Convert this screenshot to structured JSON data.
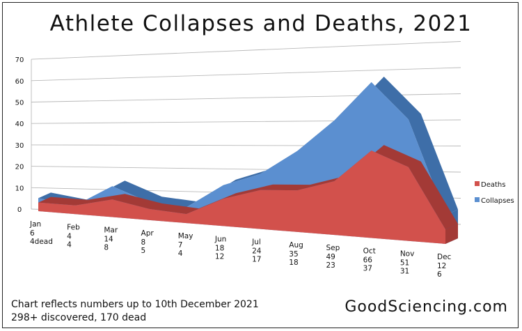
{
  "chart_data": {
    "type": "area",
    "title": "Athlete Collapses and Deaths, 2021",
    "categories": [
      "Jan",
      "Feb",
      "Mar",
      "Apr",
      "May",
      "Jun",
      "Jul",
      "Aug",
      "Sep",
      "Oct",
      "Nov",
      "Dec"
    ],
    "y_ticks": [
      "0",
      "10",
      "20",
      "30",
      "40",
      "50",
      "60",
      "70"
    ],
    "ylim": [
      0,
      70
    ],
    "grid": true,
    "legend_position": "right",
    "series": [
      {
        "name": "Collapses",
        "color": "#5b8fd0",
        "values": [
          6,
          4,
          14,
          8,
          7,
          18,
          24,
          35,
          49,
          66,
          51,
          12
        ]
      },
      {
        "name": "Deaths",
        "color": "#d2514c",
        "values": [
          4,
          4,
          8,
          5,
          4,
          12,
          17,
          18,
          23,
          37,
          31,
          6
        ]
      }
    ],
    "month_labels": [
      {
        "month": "Jan",
        "line1": "6",
        "line2": "4dead"
      },
      {
        "month": "Feb",
        "line1": "4",
        "line2": "4"
      },
      {
        "month": "Mar",
        "line1": "14",
        "line2": "8"
      },
      {
        "month": "Apr",
        "line1": "8",
        "line2": "5"
      },
      {
        "month": "May",
        "line1": "7",
        "line2": "4"
      },
      {
        "month": "Jun",
        "line1": "18",
        "line2": "12"
      },
      {
        "month": "Jul",
        "line1": "24",
        "line2": "17"
      },
      {
        "month": "Aug",
        "line1": "35",
        "line2": "18"
      },
      {
        "month": "Sep",
        "line1": "49",
        "line2": "23"
      },
      {
        "month": "Oct",
        "line1": "66",
        "line2": "37"
      },
      {
        "month": "Nov",
        "line1": "51",
        "line2": "31"
      },
      {
        "month": "Dec",
        "line1": "12",
        "line2": "6"
      }
    ],
    "footnote": {
      "line1": "Chart reflects numbers up to 10th December 2021",
      "line2": "298+ discovered, 170 dead"
    },
    "source": "GoodSciencing.com"
  }
}
